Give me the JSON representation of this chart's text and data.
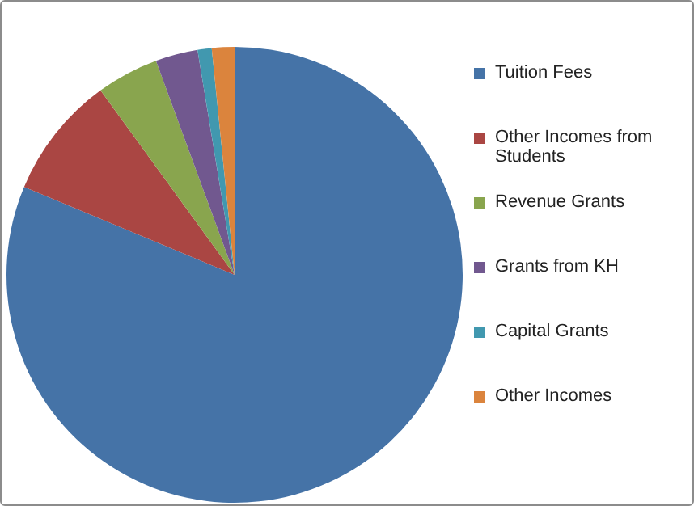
{
  "chart_data": {
    "type": "pie",
    "categories": [
      "Tuition Fees",
      "Other Incomes from Students",
      "Revenue Grants",
      "Grants from KH",
      "Capital Grants",
      "Other Incomes"
    ],
    "values": [
      81.3,
      8.7,
      4.4,
      3.0,
      1.0,
      1.6
    ],
    "colors": [
      "#4573a7",
      "#aa4643",
      "#89a54e",
      "#71588f",
      "#4198af",
      "#db843d"
    ],
    "legend": "right"
  }
}
